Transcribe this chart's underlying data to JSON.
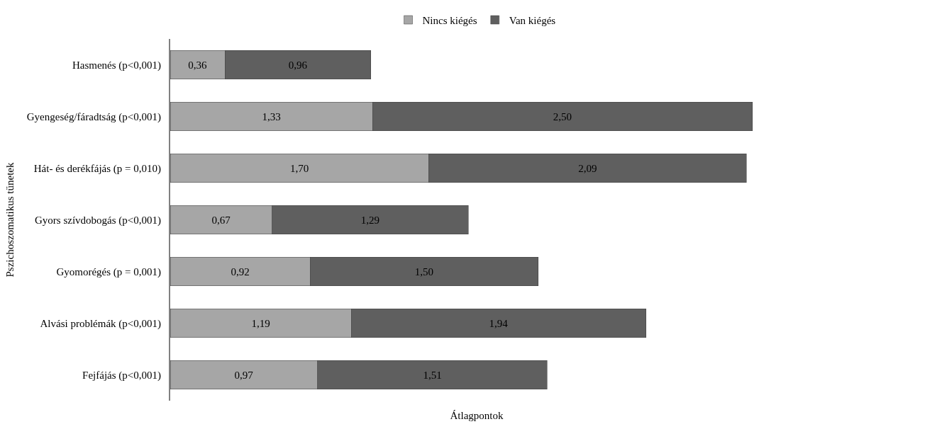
{
  "chart_data": {
    "type": "bar",
    "orientation": "horizontal",
    "stacked": true,
    "xlabel": "Átlagpontok",
    "ylabel": "Pszichoszomatikus tünetek",
    "categories": [
      "Hasmenés (p<0,001)",
      "Gyengeség/fáradtság (p<0,001)",
      "Hát- és derékfájás (p = 0,010)",
      "Gyors szívdobogás (p<0,001)",
      "Gyomorégés (p = 0,001)",
      "Alvási problémák (p<0,001)",
      "Fejfájás (p<0,001)"
    ],
    "series": [
      {
        "name": "Nincs kiégés",
        "color": "#a6a6a6",
        "values": [
          0.36,
          1.33,
          1.7,
          0.67,
          0.92,
          1.19,
          0.97
        ],
        "value_labels": [
          "0,36",
          "1,33",
          "1,70",
          "0,67",
          "0,92",
          "1,19",
          "0,97"
        ]
      },
      {
        "name": "Van kiégés",
        "color": "#5f5f5f",
        "values": [
          0.96,
          2.5,
          2.09,
          1.29,
          1.5,
          1.94,
          1.51
        ],
        "value_labels": [
          "0,96",
          "2,50",
          "2,09",
          "1,29",
          "1,50",
          "1,94",
          "1,51"
        ]
      }
    ],
    "legend": "top",
    "tick_labels": "y"
  }
}
